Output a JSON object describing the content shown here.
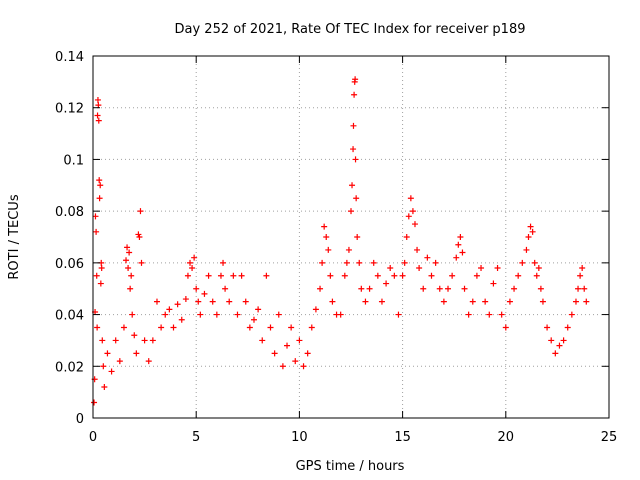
{
  "chart_data": {
    "type": "scatter",
    "title": "Day 252 of 2021, Rate Of TEC Index for receiver p189",
    "xlabel": "GPS time / hours",
    "ylabel": "ROTI / TECUs",
    "xlim": [
      0,
      25
    ],
    "ylim": [
      0,
      0.14
    ],
    "xticks": [
      0,
      5,
      10,
      15,
      20,
      25
    ],
    "xtick_labels": [
      "0",
      "5",
      "10",
      "15",
      "20",
      "25"
    ],
    "yticks": [
      0,
      0.02,
      0.04,
      0.06,
      0.08,
      0.1,
      0.12,
      0.14
    ],
    "ytick_labels": [
      "0",
      "0.02",
      "0.04",
      "0.06",
      "0.08",
      "0.1",
      "0.12",
      "0.14"
    ],
    "grid": true,
    "marker": "+",
    "series": [
      {
        "name": "ROTI",
        "color": "#ff0000",
        "points": [
          [
            0.05,
            0.006
          ],
          [
            0.08,
            0.015
          ],
          [
            0.1,
            0.041
          ],
          [
            0.12,
            0.078
          ],
          [
            0.15,
            0.072
          ],
          [
            0.18,
            0.055
          ],
          [
            0.2,
            0.035
          ],
          [
            0.22,
            0.117
          ],
          [
            0.24,
            0.123
          ],
          [
            0.26,
            0.121
          ],
          [
            0.28,
            0.115
          ],
          [
            0.3,
            0.092
          ],
          [
            0.32,
            0.085
          ],
          [
            0.35,
            0.09
          ],
          [
            0.38,
            0.052
          ],
          [
            0.4,
            0.06
          ],
          [
            0.42,
            0.058
          ],
          [
            0.45,
            0.03
          ],
          [
            0.5,
            0.02
          ],
          [
            0.55,
            0.012
          ],
          [
            0.7,
            0.025
          ],
          [
            0.9,
            0.018
          ],
          [
            1.1,
            0.03
          ],
          [
            1.3,
            0.022
          ],
          [
            1.5,
            0.035
          ],
          [
            1.6,
            0.061
          ],
          [
            1.65,
            0.066
          ],
          [
            1.7,
            0.058
          ],
          [
            1.75,
            0.064
          ],
          [
            1.8,
            0.05
          ],
          [
            1.85,
            0.055
          ],
          [
            1.9,
            0.04
          ],
          [
            2.0,
            0.032
          ],
          [
            2.1,
            0.025
          ],
          [
            2.2,
            0.071
          ],
          [
            2.25,
            0.07
          ],
          [
            2.3,
            0.08
          ],
          [
            2.35,
            0.06
          ],
          [
            2.5,
            0.03
          ],
          [
            2.7,
            0.022
          ],
          [
            2.9,
            0.03
          ],
          [
            3.1,
            0.045
          ],
          [
            3.3,
            0.035
          ],
          [
            3.5,
            0.04
          ],
          [
            3.7,
            0.042
          ],
          [
            3.9,
            0.035
          ],
          [
            4.1,
            0.044
          ],
          [
            4.3,
            0.038
          ],
          [
            4.5,
            0.046
          ],
          [
            4.6,
            0.055
          ],
          [
            4.7,
            0.06
          ],
          [
            4.8,
            0.058
          ],
          [
            4.9,
            0.062
          ],
          [
            5.0,
            0.05
          ],
          [
            5.1,
            0.045
          ],
          [
            5.2,
            0.04
          ],
          [
            5.4,
            0.048
          ],
          [
            5.6,
            0.055
          ],
          [
            5.8,
            0.045
          ],
          [
            6.0,
            0.04
          ],
          [
            6.2,
            0.055
          ],
          [
            6.3,
            0.06
          ],
          [
            6.4,
            0.05
          ],
          [
            6.6,
            0.045
          ],
          [
            6.8,
            0.055
          ],
          [
            7.0,
            0.04
          ],
          [
            7.2,
            0.055
          ],
          [
            7.4,
            0.045
          ],
          [
            7.6,
            0.035
          ],
          [
            7.8,
            0.038
          ],
          [
            8.0,
            0.042
          ],
          [
            8.2,
            0.03
          ],
          [
            8.4,
            0.055
          ],
          [
            8.6,
            0.035
          ],
          [
            8.8,
            0.025
          ],
          [
            9.0,
            0.04
          ],
          [
            9.2,
            0.02
          ],
          [
            9.4,
            0.028
          ],
          [
            9.6,
            0.035
          ],
          [
            9.8,
            0.022
          ],
          [
            10.0,
            0.03
          ],
          [
            10.2,
            0.02
          ],
          [
            10.4,
            0.025
          ],
          [
            10.6,
            0.035
          ],
          [
            10.8,
            0.042
          ],
          [
            11.0,
            0.05
          ],
          [
            11.1,
            0.06
          ],
          [
            11.2,
            0.074
          ],
          [
            11.3,
            0.07
          ],
          [
            11.4,
            0.065
          ],
          [
            11.5,
            0.055
          ],
          [
            11.6,
            0.045
          ],
          [
            11.8,
            0.04
          ],
          [
            12.0,
            0.04
          ],
          [
            12.2,
            0.055
          ],
          [
            12.3,
            0.06
          ],
          [
            12.4,
            0.065
          ],
          [
            12.5,
            0.08
          ],
          [
            12.55,
            0.09
          ],
          [
            12.6,
            0.104
          ],
          [
            12.62,
            0.113
          ],
          [
            12.65,
            0.125
          ],
          [
            12.68,
            0.13
          ],
          [
            12.7,
            0.131
          ],
          [
            12.72,
            0.1
          ],
          [
            12.75,
            0.085
          ],
          [
            12.8,
            0.07
          ],
          [
            12.9,
            0.06
          ],
          [
            13.0,
            0.05
          ],
          [
            13.2,
            0.045
          ],
          [
            13.4,
            0.05
          ],
          [
            13.6,
            0.06
          ],
          [
            13.8,
            0.055
          ],
          [
            14.0,
            0.045
          ],
          [
            14.2,
            0.052
          ],
          [
            14.4,
            0.058
          ],
          [
            14.6,
            0.055
          ],
          [
            14.8,
            0.04
          ],
          [
            15.0,
            0.055
          ],
          [
            15.1,
            0.06
          ],
          [
            15.2,
            0.07
          ],
          [
            15.3,
            0.078
          ],
          [
            15.4,
            0.085
          ],
          [
            15.5,
            0.08
          ],
          [
            15.6,
            0.075
          ],
          [
            15.7,
            0.065
          ],
          [
            15.8,
            0.058
          ],
          [
            16.0,
            0.05
          ],
          [
            16.2,
            0.062
          ],
          [
            16.4,
            0.055
          ],
          [
            16.6,
            0.06
          ],
          [
            16.8,
            0.05
          ],
          [
            17.0,
            0.045
          ],
          [
            17.2,
            0.05
          ],
          [
            17.4,
            0.055
          ],
          [
            17.6,
            0.062
          ],
          [
            17.7,
            0.067
          ],
          [
            17.8,
            0.07
          ],
          [
            17.9,
            0.064
          ],
          [
            18.0,
            0.05
          ],
          [
            18.2,
            0.04
          ],
          [
            18.4,
            0.045
          ],
          [
            18.6,
            0.055
          ],
          [
            18.8,
            0.058
          ],
          [
            19.0,
            0.045
          ],
          [
            19.2,
            0.04
          ],
          [
            19.4,
            0.052
          ],
          [
            19.6,
            0.058
          ],
          [
            19.8,
            0.04
          ],
          [
            20.0,
            0.035
          ],
          [
            20.2,
            0.045
          ],
          [
            20.4,
            0.05
          ],
          [
            20.6,
            0.055
          ],
          [
            20.8,
            0.06
          ],
          [
            21.0,
            0.065
          ],
          [
            21.1,
            0.07
          ],
          [
            21.2,
            0.074
          ],
          [
            21.3,
            0.072
          ],
          [
            21.4,
            0.06
          ],
          [
            21.5,
            0.055
          ],
          [
            21.6,
            0.058
          ],
          [
            21.7,
            0.05
          ],
          [
            21.8,
            0.045
          ],
          [
            22.0,
            0.035
          ],
          [
            22.2,
            0.03
          ],
          [
            22.4,
            0.025
          ],
          [
            22.6,
            0.028
          ],
          [
            22.8,
            0.03
          ],
          [
            23.0,
            0.035
          ],
          [
            23.2,
            0.04
          ],
          [
            23.4,
            0.045
          ],
          [
            23.5,
            0.05
          ],
          [
            23.6,
            0.055
          ],
          [
            23.7,
            0.058
          ],
          [
            23.8,
            0.05
          ],
          [
            23.9,
            0.045
          ]
        ]
      }
    ]
  }
}
